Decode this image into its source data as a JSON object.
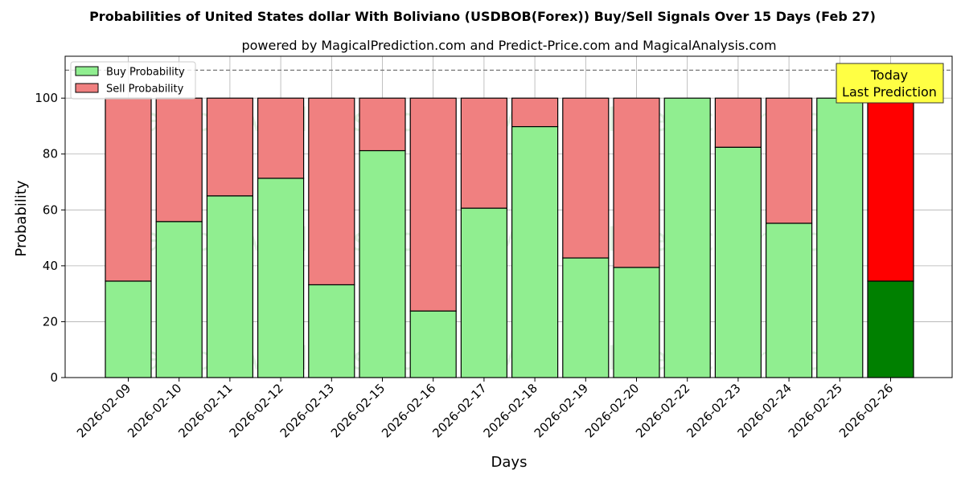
{
  "chart_data": {
    "type": "bar",
    "stacked": true,
    "title": "Probabilities of United States dollar With Boliviano (USDBOB(Forex)) Buy/Sell Signals Over 15 Days (Feb 27)",
    "subtitle": "powered by MagicalPrediction.com and Predict-Price.com and MagicalAnalysis.com",
    "xlabel": "Days",
    "ylabel": "Probability",
    "ylim": [
      0,
      115
    ],
    "yticks": [
      0,
      20,
      40,
      60,
      80,
      100
    ],
    "reference_line": 110,
    "grid": true,
    "legend_position": "top-left",
    "categories": [
      "2026-02-09",
      "2026-02-10",
      "2026-02-11",
      "2026-02-12",
      "2026-02-13",
      "2026-02-15",
      "2026-02-16",
      "2026-02-17",
      "2026-02-18",
      "2026-02-19",
      "2026-02-20",
      "2026-02-22",
      "2026-02-23",
      "2026-02-24",
      "2026-02-25",
      "2026-02-26"
    ],
    "series": [
      {
        "name": "Buy Probability",
        "color": "#90ee90",
        "values": [
          34.5,
          55.8,
          65.0,
          71.3,
          33.2,
          81.2,
          23.8,
          60.6,
          89.8,
          42.8,
          39.4,
          100.0,
          82.4,
          55.2,
          100.0,
          34.5
        ]
      },
      {
        "name": "Sell Probability",
        "color": "#f08080",
        "values": [
          65.5,
          44.2,
          35.0,
          28.7,
          66.8,
          18.8,
          76.2,
          39.4,
          10.2,
          57.2,
          60.6,
          0.0,
          17.6,
          44.8,
          0.0,
          65.5
        ]
      }
    ],
    "highlight": {
      "index": 15,
      "buy_color": "#008000",
      "sell_color": "#ff0000"
    },
    "annotation": {
      "lines": [
        "Today",
        "Last Prediction"
      ],
      "background": "#ffff44"
    },
    "watermarks": [
      "MagicalAnalysis.com",
      "MagicalPrediction.com"
    ]
  }
}
